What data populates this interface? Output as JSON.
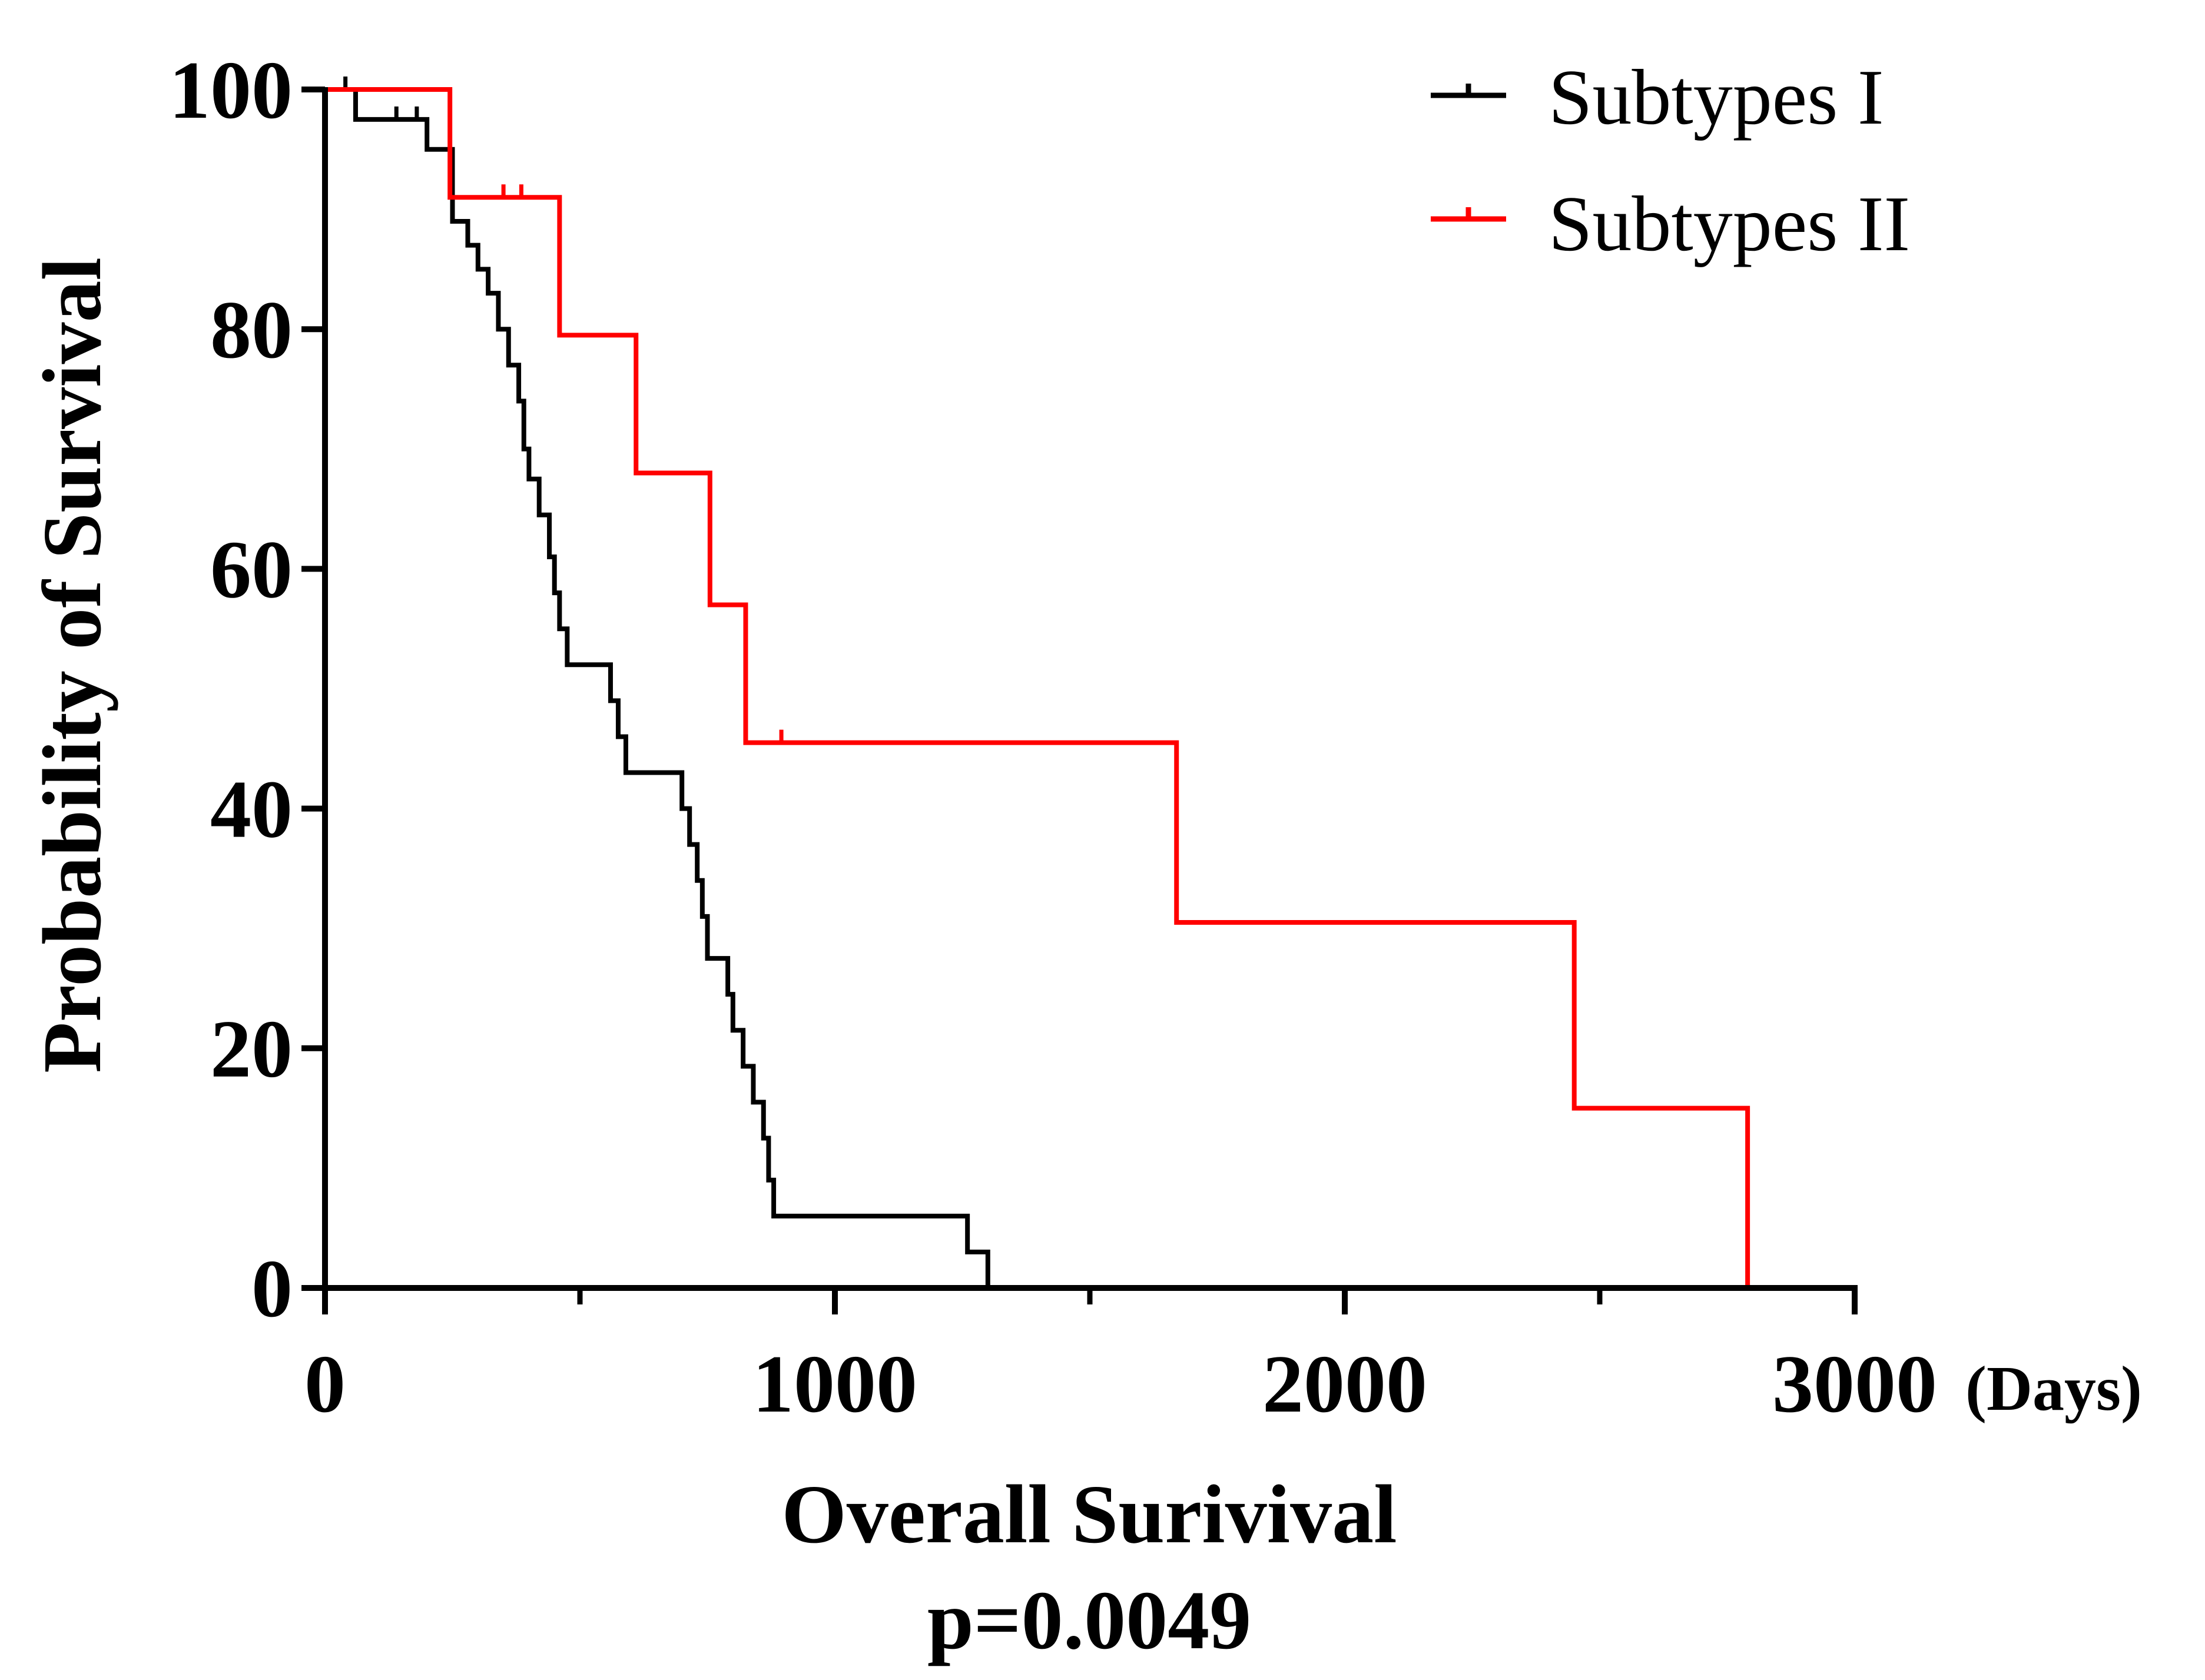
{
  "chart_data": {
    "type": "line",
    "subtype": "kaplan-meier-survival",
    "ylabel": "Probability of Survival",
    "xlabel": "Overall Surivival",
    "x_unit": "(Days)",
    "annotation": "p=0.0049",
    "xlim": [
      0,
      3000
    ],
    "ylim": [
      0,
      100
    ],
    "x_ticks": [
      0,
      1000,
      2000,
      3000
    ],
    "x_tick_labels": [
      "0",
      "1000",
      "2000",
      "3000"
    ],
    "x_minor_ticks": [
      500,
      1500,
      2500
    ],
    "y_ticks": [
      0,
      20,
      40,
      60,
      80,
      100
    ],
    "y_tick_labels": [
      "0",
      "20",
      "40",
      "60",
      "80",
      "100"
    ],
    "legend_position": "top-right",
    "series": [
      {
        "name": "Subtypes I",
        "color": "#000000",
        "steps": [
          [
            0,
            100
          ],
          [
            60,
            97.5
          ],
          [
            200,
            95
          ],
          [
            250,
            89
          ],
          [
            280,
            87
          ],
          [
            300,
            85
          ],
          [
            320,
            83
          ],
          [
            340,
            80
          ],
          [
            360,
            77
          ],
          [
            380,
            74
          ],
          [
            390,
            70
          ],
          [
            400,
            67.5
          ],
          [
            420,
            64.5
          ],
          [
            440,
            61
          ],
          [
            450,
            58
          ],
          [
            460,
            55
          ],
          [
            475,
            52
          ],
          [
            560,
            49
          ],
          [
            575,
            46
          ],
          [
            590,
            43
          ],
          [
            700,
            40
          ],
          [
            715,
            37
          ],
          [
            730,
            34
          ],
          [
            740,
            31
          ],
          [
            750,
            27.5
          ],
          [
            790,
            24.5
          ],
          [
            800,
            21.5
          ],
          [
            820,
            18.5
          ],
          [
            840,
            15.5
          ],
          [
            860,
            12.5
          ],
          [
            870,
            9
          ],
          [
            880,
            6
          ],
          [
            1260,
            3
          ],
          [
            1300,
            0
          ]
        ],
        "end_x": 1300,
        "censored": [
          [
            40,
            100
          ],
          [
            140,
            97.5
          ],
          [
            180,
            97.5
          ]
        ]
      },
      {
        "name": "Subtypes II",
        "color": "#ff0000",
        "steps": [
          [
            0,
            100
          ],
          [
            245,
            91
          ],
          [
            460,
            79.5
          ],
          [
            610,
            68
          ],
          [
            755,
            57
          ],
          [
            825,
            45.5
          ],
          [
            1670,
            30.5
          ],
          [
            2450,
            15
          ],
          [
            2790,
            0
          ]
        ],
        "end_x": 2790,
        "censored": [
          [
            350,
            91
          ],
          [
            385,
            91
          ],
          [
            895,
            45.5
          ]
        ]
      }
    ]
  }
}
